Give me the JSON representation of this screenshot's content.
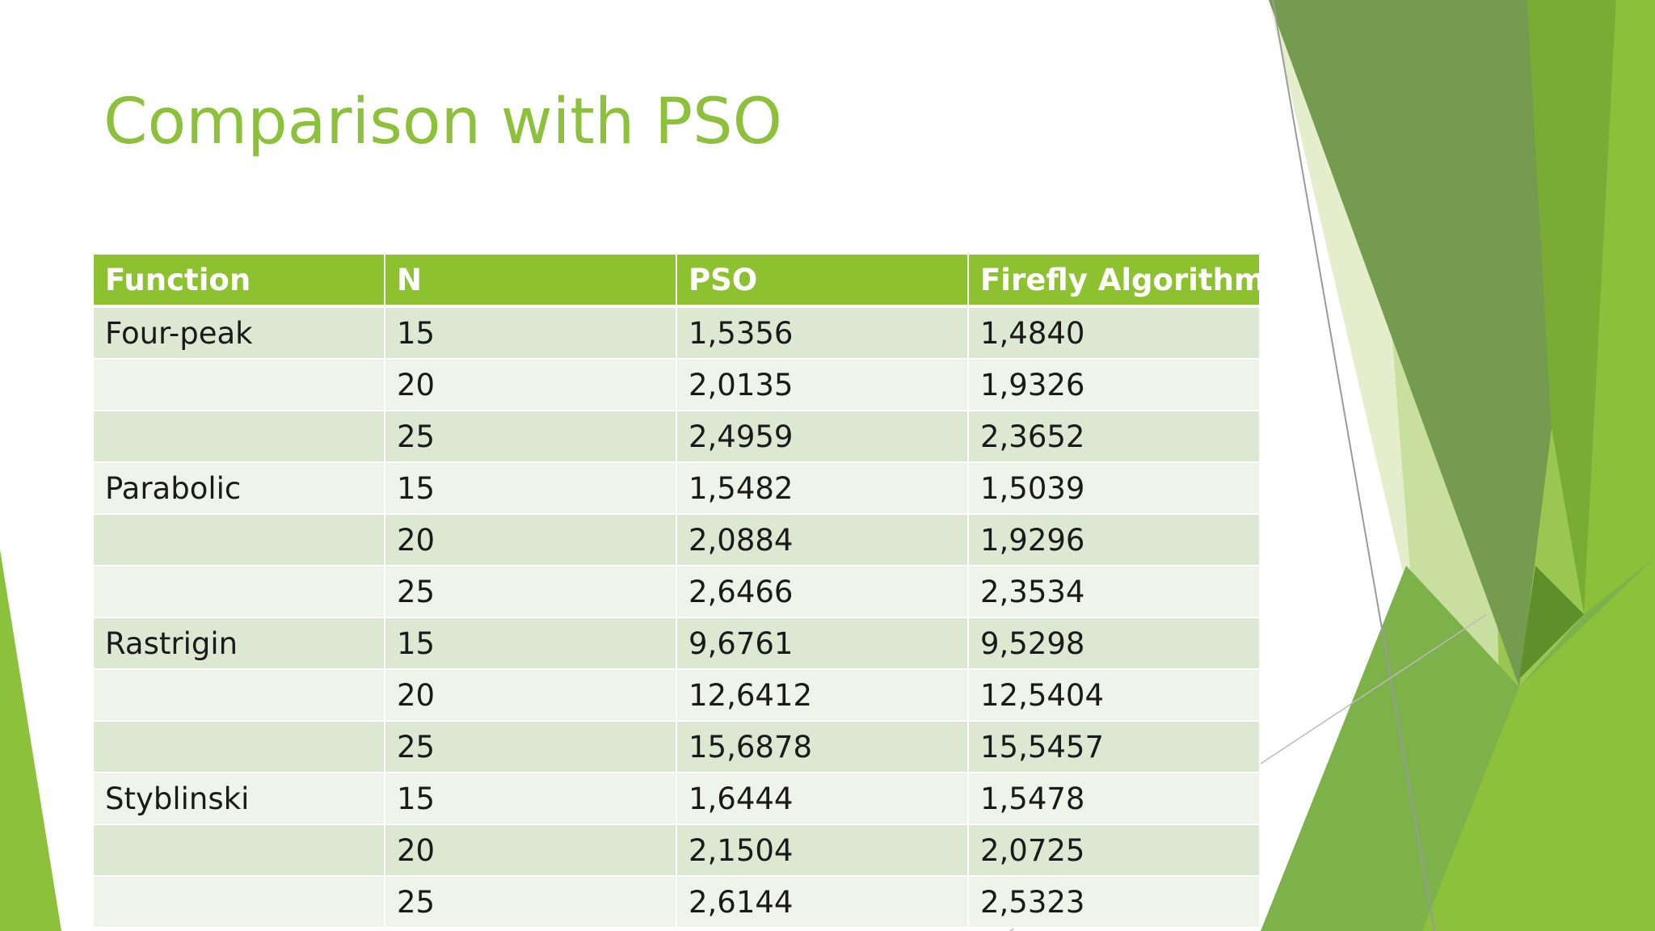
{
  "slide": {
    "title": "Comparison with PSO"
  },
  "table": {
    "headers": [
      "Function",
      "N",
      "PSO",
      "Firefly Algorithm"
    ],
    "rows": [
      [
        "Four-peak",
        "15",
        "1,5356",
        "1,4840"
      ],
      [
        "",
        "20",
        "2,0135",
        "1,9326"
      ],
      [
        "",
        "25",
        "2,4959",
        "2,3652"
      ],
      [
        "Parabolic",
        "15",
        "1,5482",
        "1,5039"
      ],
      [
        "",
        "20",
        "2,0884",
        "1,9296"
      ],
      [
        "",
        "25",
        "2,6466",
        "2,3534"
      ],
      [
        "Rastrigin",
        "15",
        "9,6761",
        "9,5298"
      ],
      [
        "",
        "20",
        "12,6412",
        "12,5404"
      ],
      [
        "",
        "25",
        "15,6878",
        "15,5457"
      ],
      [
        "Styblinski",
        "15",
        "1,6444",
        "1,5478"
      ],
      [
        "",
        "20",
        "2,1504",
        "2,0725"
      ],
      [
        "",
        "25",
        "2,6144",
        "2,5323"
      ]
    ]
  },
  "theme": {
    "accent": "#8dc13b",
    "header_fill": "#8dc12f",
    "row_odd": "#dde8d2",
    "row_even": "#eff4ea"
  }
}
